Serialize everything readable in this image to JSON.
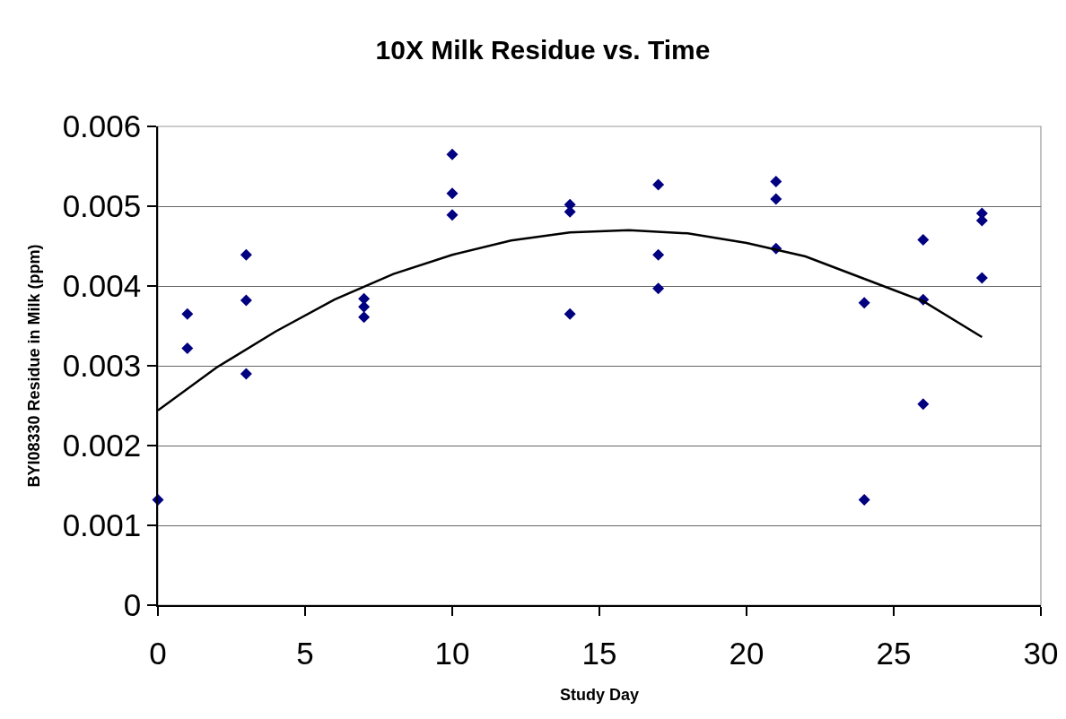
{
  "chart_data": {
    "type": "scatter",
    "title": "10X Milk Residue vs. Time",
    "xlabel": "Study Day",
    "ylabel": "BYI08330 Residue in Milk (ppm)",
    "xlim": [
      0,
      30
    ],
    "xticks": [
      0,
      5,
      10,
      15,
      20,
      25,
      30
    ],
    "ylim": [
      0,
      0.006
    ],
    "yticks": [
      0,
      0.001,
      0.002,
      0.003,
      0.004,
      0.005,
      0.006
    ],
    "grid": "y",
    "marker": "diamond",
    "series": [
      {
        "color": "#000080",
        "x": [
          0,
          1,
          1,
          3,
          3,
          3,
          7,
          7,
          7,
          10,
          10,
          10,
          14,
          14,
          14,
          17,
          17,
          17,
          21,
          21,
          21,
          24,
          24,
          26,
          26,
          26,
          28,
          28,
          28
        ],
        "values": [
          0.00132,
          0.00365,
          0.00322,
          0.00439,
          0.00382,
          0.0029,
          0.00384,
          0.00374,
          0.00361,
          0.00565,
          0.00516,
          0.00489,
          0.00502,
          0.00493,
          0.00365,
          0.00527,
          0.00439,
          0.00397,
          0.00531,
          0.00509,
          0.00447,
          0.00379,
          0.00132,
          0.00458,
          0.00383,
          0.00252,
          0.00491,
          0.00482,
          0.0041
        ]
      },
      {
        "type": "line",
        "color": "#000000",
        "marker": "none",
        "line_style": "solid",
        "x": [
          0,
          2,
          4,
          6,
          8,
          10,
          12,
          14,
          16,
          18,
          20,
          22,
          24,
          26,
          28
        ],
        "values": [
          0.00244,
          0.00298,
          0.00343,
          0.00383,
          0.00415,
          0.00439,
          0.00457,
          0.00467,
          0.0047,
          0.00466,
          0.00454,
          0.00437,
          0.00409,
          0.00381,
          0.00336
        ]
      }
    ]
  }
}
